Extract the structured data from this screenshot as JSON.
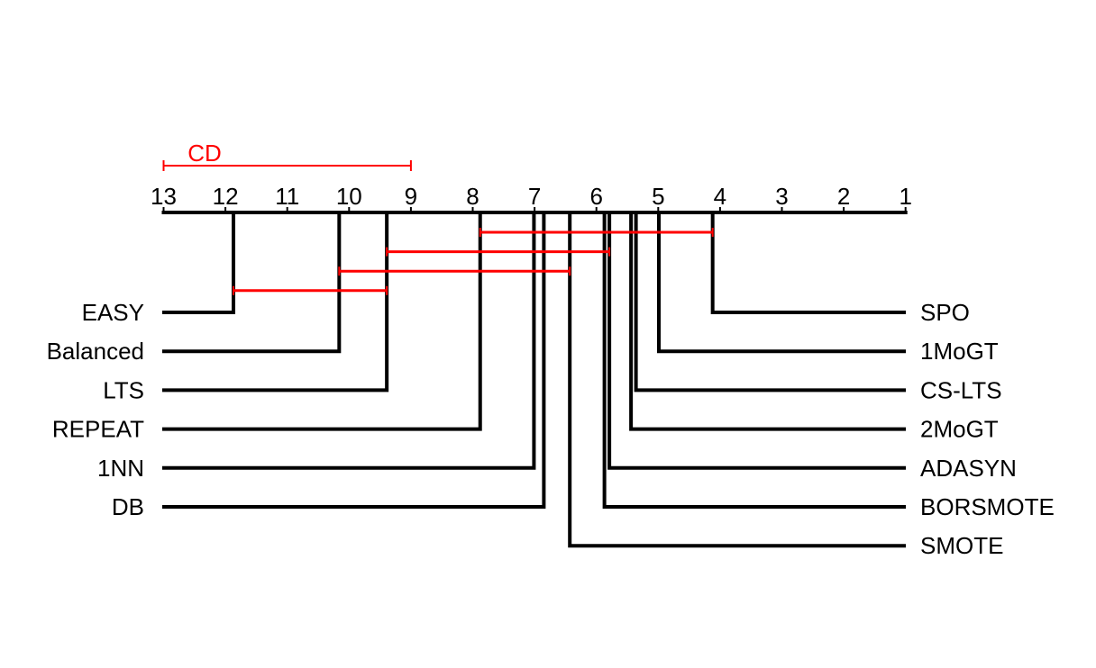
{
  "chart_data": {
    "type": "critical-difference-diagram",
    "axis": {
      "ticks": [
        13,
        12,
        11,
        10,
        9,
        8,
        7,
        6,
        5,
        4,
        3,
        2,
        1
      ],
      "range": [
        13,
        1
      ],
      "reversed": true
    },
    "cd": {
      "label": "CD",
      "value": 4.0
    },
    "left_methods": [
      {
        "name": "EASY",
        "rank": 11.87
      },
      {
        "name": "Balanced",
        "rank": 10.16
      },
      {
        "name": "LTS",
        "rank": 9.39
      },
      {
        "name": "REPEAT",
        "rank": 7.88
      },
      {
        "name": "1NN",
        "rank": 7.01
      },
      {
        "name": "DB",
        "rank": 6.85
      }
    ],
    "right_methods": [
      {
        "name": "SPO",
        "rank": 4.12
      },
      {
        "name": "1MoGT",
        "rank": 4.99
      },
      {
        "name": "CS-LTS",
        "rank": 5.36
      },
      {
        "name": "2MoGT",
        "rank": 5.44
      },
      {
        "name": "ADASYN",
        "rank": 5.79
      },
      {
        "name": "BORSMOTE",
        "rank": 5.87
      },
      {
        "name": "SMOTE",
        "rank": 6.43
      }
    ],
    "cliques": [
      {
        "from": 7.88,
        "to": 4.12
      },
      {
        "from": 9.39,
        "to": 5.79
      },
      {
        "from": 10.16,
        "to": 6.43
      },
      {
        "from": 11.87,
        "to": 9.39
      }
    ],
    "colors": {
      "lines": "#000000",
      "cd_and_cliques": "#ff0000"
    }
  }
}
